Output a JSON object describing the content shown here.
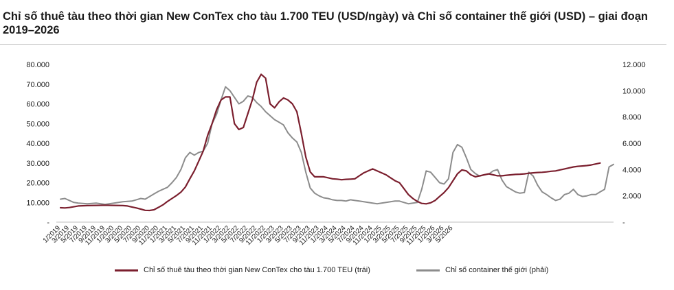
{
  "title": "Chỉ số thuê tàu theo thời gian New ConTex cho tàu 1.700 TEU (USD/ngày) và Chỉ số container thế giới (USD) – giai đoạn 2019–2026",
  "legend": {
    "series1": "Chỉ số thuê tàu theo thời gian New ConTex cho tàu 1.700 TEU (trái)",
    "series2": "Chỉ số container thế giới (phải)"
  },
  "colors": {
    "series1": "#7b1f2e",
    "series2": "#8c8c8c"
  },
  "chart_data": {
    "type": "line",
    "title": "Chỉ số thuê tàu theo thời gian New ConTex cho tàu 1.700 TEU (USD/ngày) và Chỉ số container thế giới (USD) – giai đoạn 2019–2026",
    "x_tick_labels": [
      "1/2019",
      "3/2019",
      "5/2019",
      "7/2019",
      "9/2019",
      "11/2019",
      "1/2020",
      "3/2020",
      "5/2020",
      "7/2020",
      "9/2020",
      "11/2020",
      "1/2021",
      "3/2021",
      "5/2021",
      "7/2021",
      "9/2021",
      "11/2021",
      "1/2022",
      "3/2022",
      "5/2022",
      "7/2022",
      "9/2022",
      "11/2022",
      "1/2023",
      "3/2023",
      "5/2023",
      "7/2023",
      "9/2023",
      "11/2023",
      "1/2024",
      "3/2024",
      "5/2024",
      "7/2024",
      "9/2024",
      "11/2024",
      "1/2025",
      "3/2025",
      "5/2025",
      "7/2025",
      "9/2025",
      "11/2025",
      "1/2026",
      "3/2026",
      "5/2026"
    ],
    "y_left": {
      "ylim": [
        0,
        80000
      ],
      "ticks": [
        "-",
        "10.000",
        "20.000",
        "30.000",
        "40.000",
        "50.000",
        "60.000",
        "70.000",
        "80.000"
      ]
    },
    "y_right": {
      "ylim": [
        0,
        12000
      ],
      "ticks": [
        "-",
        "2.000",
        "4.000",
        "6.000",
        "8.000",
        "10.000",
        "12.000"
      ]
    },
    "x_unit": "month index from 1/2019 (0 = 1/2019)",
    "series": [
      {
        "name": "Chỉ số thuê tàu theo thời gian New ConTex cho tàu 1.700 TEU (trái)",
        "axis": "left",
        "color": "#7b1f2e",
        "points": [
          [
            0,
            7300
          ],
          [
            1,
            7200
          ],
          [
            2,
            7400
          ],
          [
            3,
            7800
          ],
          [
            4,
            8200
          ],
          [
            6,
            8400
          ],
          [
            8,
            8500
          ],
          [
            10,
            8600
          ],
          [
            12,
            8500
          ],
          [
            14,
            8400
          ],
          [
            15,
            8200
          ],
          [
            16,
            7700
          ],
          [
            17,
            7200
          ],
          [
            18,
            6600
          ],
          [
            19,
            6000
          ],
          [
            20,
            5900
          ],
          [
            21,
            6300
          ],
          [
            22,
            7500
          ],
          [
            23,
            8800
          ],
          [
            24,
            10500
          ],
          [
            25,
            12000
          ],
          [
            26,
            13500
          ],
          [
            27,
            15200
          ],
          [
            28,
            17800
          ],
          [
            29,
            22000
          ],
          [
            30,
            26000
          ],
          [
            31,
            31000
          ],
          [
            32,
            36000
          ],
          [
            33,
            44000
          ],
          [
            34,
            50000
          ],
          [
            35,
            57000
          ],
          [
            36,
            62000
          ],
          [
            37,
            63500
          ],
          [
            38,
            63500
          ],
          [
            39,
            50000
          ],
          [
            40,
            47000
          ],
          [
            41,
            48000
          ],
          [
            42,
            55000
          ],
          [
            43,
            62000
          ],
          [
            44,
            71000
          ],
          [
            45,
            75000
          ],
          [
            46,
            73000
          ],
          [
            47,
            60000
          ],
          [
            48,
            58000
          ],
          [
            49,
            61000
          ],
          [
            50,
            63000
          ],
          [
            51,
            62000
          ],
          [
            52,
            60000
          ],
          [
            53,
            56000
          ],
          [
            54,
            45000
          ],
          [
            55,
            33000
          ],
          [
            56,
            25500
          ],
          [
            57,
            23000
          ],
          [
            58,
            23000
          ],
          [
            59,
            23000
          ],
          [
            60,
            22500
          ],
          [
            61,
            22000
          ],
          [
            62,
            21800
          ],
          [
            63,
            21500
          ],
          [
            64,
            21700
          ],
          [
            65,
            21800
          ],
          [
            66,
            22000
          ],
          [
            67,
            23500
          ],
          [
            68,
            25000
          ],
          [
            69,
            26000
          ],
          [
            70,
            27000
          ],
          [
            71,
            26000
          ],
          [
            72,
            25000
          ],
          [
            73,
            24000
          ],
          [
            74,
            22500
          ],
          [
            75,
            21000
          ],
          [
            76,
            20000
          ],
          [
            77,
            17000
          ],
          [
            78,
            14000
          ],
          [
            79,
            12000
          ],
          [
            80,
            10500
          ],
          [
            81,
            9500
          ],
          [
            82,
            9300
          ],
          [
            83,
            9800
          ],
          [
            84,
            11000
          ],
          [
            85,
            13000
          ],
          [
            86,
            15000
          ],
          [
            87,
            17500
          ],
          [
            88,
            21000
          ],
          [
            89,
            24500
          ],
          [
            90,
            26500
          ],
          [
            91,
            26000
          ],
          [
            92,
            24000
          ],
          [
            93,
            23000
          ],
          [
            94,
            23500
          ],
          [
            95,
            24000
          ],
          [
            96,
            24500
          ],
          [
            97,
            24000
          ],
          [
            98,
            23500
          ],
          [
            99,
            23500
          ],
          [
            100,
            23800
          ],
          [
            101,
            24000
          ],
          [
            102,
            24200
          ],
          [
            103,
            24300
          ],
          [
            104,
            24500
          ],
          [
            105,
            24800
          ],
          [
            106,
            25000
          ],
          [
            107,
            25200
          ],
          [
            108,
            25300
          ],
          [
            109,
            25500
          ],
          [
            110,
            25800
          ],
          [
            111,
            26000
          ],
          [
            112,
            26500
          ],
          [
            113,
            27000
          ],
          [
            114,
            27500
          ],
          [
            115,
            28000
          ],
          [
            116,
            28300
          ],
          [
            117,
            28500
          ],
          [
            118,
            28700
          ],
          [
            119,
            29000
          ],
          [
            120,
            29500
          ],
          [
            121,
            30000
          ]
        ]
      },
      {
        "name": "Chỉ số container thế giới (phải)",
        "axis": "right",
        "color": "#8c8c8c",
        "points": [
          [
            0,
            1750
          ],
          [
            1,
            1800
          ],
          [
            2,
            1650
          ],
          [
            3,
            1500
          ],
          [
            4,
            1450
          ],
          [
            6,
            1400
          ],
          [
            8,
            1450
          ],
          [
            10,
            1350
          ],
          [
            12,
            1450
          ],
          [
            14,
            1550
          ],
          [
            16,
            1600
          ],
          [
            17,
            1700
          ],
          [
            18,
            1800
          ],
          [
            19,
            1750
          ],
          [
            20,
            1950
          ],
          [
            21,
            2150
          ],
          [
            22,
            2350
          ],
          [
            23,
            2500
          ],
          [
            24,
            2650
          ],
          [
            25,
            3000
          ],
          [
            26,
            3400
          ],
          [
            27,
            4000
          ],
          [
            28,
            4900
          ],
          [
            29,
            5300
          ],
          [
            30,
            5100
          ],
          [
            31,
            5300
          ],
          [
            32,
            5400
          ],
          [
            33,
            6000
          ],
          [
            34,
            7500
          ],
          [
            35,
            8200
          ],
          [
            36,
            9300
          ],
          [
            37,
            10300
          ],
          [
            38,
            10000
          ],
          [
            39,
            9500
          ],
          [
            40,
            9000
          ],
          [
            41,
            9200
          ],
          [
            42,
            9600
          ],
          [
            43,
            9500
          ],
          [
            44,
            9100
          ],
          [
            45,
            8800
          ],
          [
            46,
            8400
          ],
          [
            47,
            8100
          ],
          [
            48,
            7800
          ],
          [
            49,
            7600
          ],
          [
            50,
            7400
          ],
          [
            51,
            6800
          ],
          [
            52,
            6400
          ],
          [
            53,
            6100
          ],
          [
            54,
            5300
          ],
          [
            55,
            3800
          ],
          [
            56,
            2600
          ],
          [
            57,
            2200
          ],
          [
            58,
            2000
          ],
          [
            59,
            1850
          ],
          [
            60,
            1800
          ],
          [
            61,
            1700
          ],
          [
            62,
            1650
          ],
          [
            63,
            1650
          ],
          [
            64,
            1600
          ],
          [
            65,
            1700
          ],
          [
            66,
            1650
          ],
          [
            67,
            1600
          ],
          [
            68,
            1550
          ],
          [
            69,
            1500
          ],
          [
            70,
            1450
          ],
          [
            71,
            1400
          ],
          [
            72,
            1450
          ],
          [
            73,
            1500
          ],
          [
            74,
            1550
          ],
          [
            75,
            1600
          ],
          [
            76,
            1600
          ],
          [
            77,
            1500
          ],
          [
            78,
            1400
          ],
          [
            79,
            1450
          ],
          [
            80,
            1500
          ],
          [
            81,
            2500
          ],
          [
            82,
            3900
          ],
          [
            83,
            3800
          ],
          [
            84,
            3400
          ],
          [
            85,
            3000
          ],
          [
            86,
            2900
          ],
          [
            87,
            3300
          ],
          [
            88,
            5300
          ],
          [
            89,
            5900
          ],
          [
            90,
            5700
          ],
          [
            91,
            4900
          ],
          [
            92,
            4000
          ],
          [
            93,
            3700
          ],
          [
            94,
            3500
          ],
          [
            95,
            3600
          ],
          [
            96,
            3650
          ],
          [
            97,
            3900
          ],
          [
            98,
            4000
          ],
          [
            99,
            3200
          ],
          [
            100,
            2700
          ],
          [
            101,
            2500
          ],
          [
            102,
            2300
          ],
          [
            103,
            2200
          ],
          [
            104,
            2250
          ],
          [
            105,
            3800
          ],
          [
            106,
            3500
          ],
          [
            107,
            2800
          ],
          [
            108,
            2300
          ],
          [
            109,
            2100
          ],
          [
            110,
            1850
          ],
          [
            111,
            1650
          ],
          [
            112,
            1750
          ],
          [
            113,
            2100
          ],
          [
            114,
            2200
          ],
          [
            115,
            2500
          ],
          [
            116,
            2100
          ],
          [
            117,
            1950
          ],
          [
            118,
            2000
          ],
          [
            119,
            2100
          ],
          [
            120,
            2100
          ],
          [
            121,
            2300
          ],
          [
            122,
            2500
          ],
          [
            123,
            4200
          ],
          [
            124,
            4400
          ]
        ]
      }
    ]
  }
}
